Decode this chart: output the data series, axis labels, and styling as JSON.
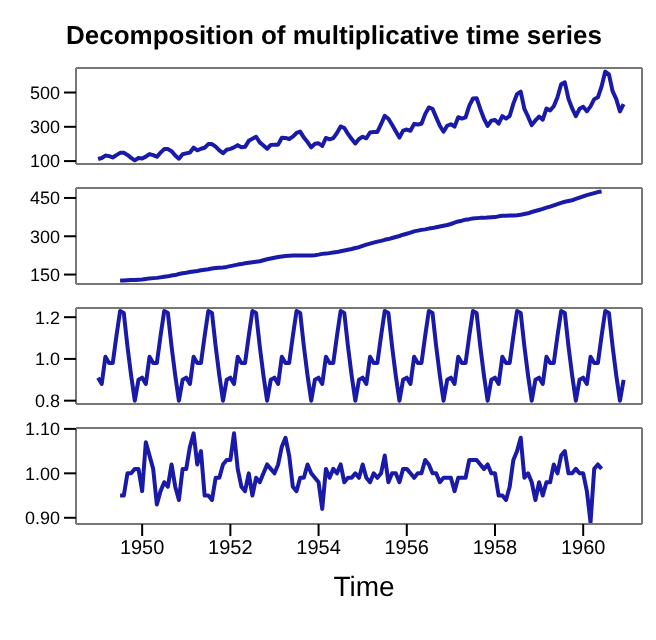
{
  "chart_data": [
    {
      "type": "line",
      "title": "Decomposition of multiplicative time series",
      "tick_labels": "y",
      "x": [
        "1949-01",
        "1949-02",
        "1949-03",
        "1949-04",
        "1949-05",
        "1949-06",
        "1949-07",
        "1949-08",
        "1949-09",
        "1949-10",
        "1949-11",
        "1949-12",
        "1950-01",
        "1950-02",
        "1950-03",
        "1950-04",
        "1950-05",
        "1950-06",
        "1950-07",
        "1950-08",
        "1950-09",
        "1950-10",
        "1950-11",
        "1950-12",
        "1951-01",
        "1951-02",
        "1951-03",
        "1951-04",
        "1951-05",
        "1951-06",
        "1951-07",
        "1951-08",
        "1951-09",
        "1951-10",
        "1951-11",
        "1951-12",
        "1952-01",
        "1952-02",
        "1952-03",
        "1952-04",
        "1952-05",
        "1952-06",
        "1952-07",
        "1952-08",
        "1952-09",
        "1952-10",
        "1952-11",
        "1952-12",
        "1953-01",
        "1953-02",
        "1953-03",
        "1953-04",
        "1953-05",
        "1953-06",
        "1953-07",
        "1953-08",
        "1953-09",
        "1953-10",
        "1953-11",
        "1953-12",
        "1954-01",
        "1954-02",
        "1954-03",
        "1954-04",
        "1954-05",
        "1954-06",
        "1954-07",
        "1954-08",
        "1954-09",
        "1954-10",
        "1954-11",
        "1954-12",
        "1955-01",
        "1955-02",
        "1955-03",
        "1955-04",
        "1955-05",
        "1955-06",
        "1955-07",
        "1955-08",
        "1955-09",
        "1955-10",
        "1955-11",
        "1955-12",
        "1956-01",
        "1956-02",
        "1956-03",
        "1956-04",
        "1956-05",
        "1956-06",
        "1956-07",
        "1956-08",
        "1956-09",
        "1956-10",
        "1956-11",
        "1956-12",
        "1957-01",
        "1957-02",
        "1957-03",
        "1957-04",
        "1957-05",
        "1957-06",
        "1957-07",
        "1957-08",
        "1957-09",
        "1957-10",
        "1957-11",
        "1957-12",
        "1958-01",
        "1958-02",
        "1958-03",
        "1958-04",
        "1958-05",
        "1958-06",
        "1958-07",
        "1958-08",
        "1958-09",
        "1958-10",
        "1958-11",
        "1958-12",
        "1959-01",
        "1959-02",
        "1959-03",
        "1959-04",
        "1959-05",
        "1959-06",
        "1959-07",
        "1959-08",
        "1959-09",
        "1959-10",
        "1959-11",
        "1959-12",
        "1960-01",
        "1960-02",
        "1960-03",
        "1960-04",
        "1960-05",
        "1960-06",
        "1960-07",
        "1960-08",
        "1960-09",
        "1960-10",
        "1960-11",
        "1960-12"
      ],
      "series": [
        {
          "color": "#1a1aa8",
          "values": [
            112,
            118,
            132,
            129,
            121,
            135,
            148,
            148,
            136,
            119,
            104,
            118,
            115,
            126,
            141,
            135,
            125,
            149,
            170,
            170,
            158,
            133,
            114,
            140,
            145,
            150,
            178,
            163,
            172,
            178,
            199,
            199,
            184,
            162,
            146,
            166,
            171,
            180,
            193,
            181,
            183,
            218,
            230,
            242,
            209,
            191,
            172,
            194,
            196,
            196,
            236,
            235,
            229,
            243,
            264,
            272,
            237,
            211,
            180,
            201,
            204,
            188,
            235,
            227,
            234,
            264,
            302,
            293,
            259,
            229,
            203,
            229,
            242,
            233,
            267,
            269,
            270,
            315,
            364,
            347,
            312,
            274,
            237,
            278,
            284,
            277,
            317,
            313,
            318,
            374,
            413,
            405,
            355,
            306,
            271,
            306,
            315,
            301,
            356,
            348,
            355,
            422,
            465,
            467,
            404,
            347,
            305,
            336,
            340,
            318,
            362,
            348,
            363,
            435,
            491,
            505,
            404,
            359,
            310,
            337,
            360,
            342,
            406,
            396,
            420,
            472,
            548,
            559,
            463,
            407,
            362,
            405,
            417,
            391,
            419,
            461,
            472,
            535,
            622,
            606,
            508,
            461,
            390,
            432
          ]
        }
      ],
      "xlim": [
        "1948-07",
        "1961-05"
      ],
      "xticks": [
        "1950",
        "1952",
        "1954",
        "1956",
        "1958",
        "1960"
      ],
      "ylim": [
        83,
        643
      ],
      "yticks": [
        100,
        300,
        500
      ]
    },
    {
      "type": "line",
      "tick_labels": "y",
      "x": [
        "1949-07",
        "1949-08",
        "1949-09",
        "1949-10",
        "1949-11",
        "1949-12",
        "1950-01",
        "1950-02",
        "1950-03",
        "1950-04",
        "1950-05",
        "1950-06",
        "1950-07",
        "1950-08",
        "1950-09",
        "1950-10",
        "1950-11",
        "1950-12",
        "1951-01",
        "1951-02",
        "1951-03",
        "1951-04",
        "1951-05",
        "1951-06",
        "1951-07",
        "1951-08",
        "1951-09",
        "1951-10",
        "1951-11",
        "1951-12",
        "1952-01",
        "1952-02",
        "1952-03",
        "1952-04",
        "1952-05",
        "1952-06",
        "1952-07",
        "1952-08",
        "1952-09",
        "1952-10",
        "1952-11",
        "1952-12",
        "1953-01",
        "1953-02",
        "1953-03",
        "1953-04",
        "1953-05",
        "1953-06",
        "1953-07",
        "1953-08",
        "1953-09",
        "1953-10",
        "1953-11",
        "1953-12",
        "1954-01",
        "1954-02",
        "1954-03",
        "1954-04",
        "1954-05",
        "1954-06",
        "1954-07",
        "1954-08",
        "1954-09",
        "1954-10",
        "1954-11",
        "1954-12",
        "1955-01",
        "1955-02",
        "1955-03",
        "1955-04",
        "1955-05",
        "1955-06",
        "1955-07",
        "1955-08",
        "1955-09",
        "1955-10",
        "1955-11",
        "1955-12",
        "1956-01",
        "1956-02",
        "1956-03",
        "1956-04",
        "1956-05",
        "1956-06",
        "1956-07",
        "1956-08",
        "1956-09",
        "1956-10",
        "1956-11",
        "1956-12",
        "1957-01",
        "1957-02",
        "1957-03",
        "1957-04",
        "1957-05",
        "1957-06",
        "1957-07",
        "1957-08",
        "1957-09",
        "1957-10",
        "1957-11",
        "1957-12",
        "1958-01",
        "1958-02",
        "1958-03",
        "1958-04",
        "1958-05",
        "1958-06",
        "1958-07",
        "1958-08",
        "1958-09",
        "1958-10",
        "1958-11",
        "1958-12",
        "1959-01",
        "1959-02",
        "1959-03",
        "1959-04",
        "1959-05",
        "1959-06",
        "1959-07",
        "1959-08",
        "1959-09",
        "1959-10",
        "1959-11",
        "1959-12",
        "1960-01",
        "1960-02",
        "1960-03",
        "1960-04",
        "1960-05",
        "1960-06"
      ],
      "series": [
        {
          "color": "#1a1aa8",
          "values": [
            127,
            127,
            128,
            129,
            129,
            130,
            131,
            133,
            135,
            136,
            137,
            139,
            141,
            143,
            146,
            148,
            152,
            155,
            157,
            160,
            162,
            164,
            167,
            169,
            171,
            174,
            176,
            177,
            178,
            180,
            183,
            186,
            189,
            191,
            194,
            196,
            198,
            200,
            202,
            206,
            210,
            213,
            216,
            219,
            221,
            223,
            224,
            225,
            225,
            225,
            225,
            225,
            225,
            226,
            228,
            231,
            232,
            234,
            236,
            238,
            241,
            244,
            247,
            250,
            254,
            257,
            262,
            267,
            271,
            275,
            279,
            282,
            286,
            289,
            293,
            297,
            301,
            306,
            310,
            314,
            319,
            322,
            325,
            327,
            330,
            332,
            335,
            338,
            341,
            344,
            348,
            353,
            358,
            361,
            365,
            367,
            370,
            371,
            372,
            372,
            373,
            374,
            375,
            378,
            380,
            380,
            381,
            381,
            382,
            384,
            387,
            390,
            395,
            399,
            403,
            407,
            412,
            416,
            421,
            426,
            431,
            435,
            438,
            441,
            446,
            451,
            456,
            461,
            465,
            469,
            473,
            475
          ]
        }
      ],
      "xlim": [
        "1948-07",
        "1961-05"
      ],
      "xticks": [
        "1950",
        "1952",
        "1954",
        "1956",
        "1958",
        "1960"
      ],
      "ylim": [
        113,
        489
      ],
      "yticks": [
        150,
        300,
        450
      ]
    },
    {
      "type": "line",
      "tick_labels": "y",
      "x": [
        "1949-01",
        "1949-02",
        "1949-03",
        "1949-04",
        "1949-05",
        "1949-06",
        "1949-07",
        "1949-08",
        "1949-09",
        "1949-10",
        "1949-11",
        "1949-12",
        "1950-01",
        "1950-02",
        "1950-03",
        "1950-04",
        "1950-05",
        "1950-06",
        "1950-07",
        "1950-08",
        "1950-09",
        "1950-10",
        "1950-11",
        "1950-12",
        "1951-01",
        "1951-02",
        "1951-03",
        "1951-04",
        "1951-05",
        "1951-06",
        "1951-07",
        "1951-08",
        "1951-09",
        "1951-10",
        "1951-11",
        "1951-12",
        "1952-01",
        "1952-02",
        "1952-03",
        "1952-04",
        "1952-05",
        "1952-06",
        "1952-07",
        "1952-08",
        "1952-09",
        "1952-10",
        "1952-11",
        "1952-12",
        "1953-01",
        "1953-02",
        "1953-03",
        "1953-04",
        "1953-05",
        "1953-06",
        "1953-07",
        "1953-08",
        "1953-09",
        "1953-10",
        "1953-11",
        "1953-12",
        "1954-01",
        "1954-02",
        "1954-03",
        "1954-04",
        "1954-05",
        "1954-06",
        "1954-07",
        "1954-08",
        "1954-09",
        "1954-10",
        "1954-11",
        "1954-12",
        "1955-01",
        "1955-02",
        "1955-03",
        "1955-04",
        "1955-05",
        "1955-06",
        "1955-07",
        "1955-08",
        "1955-09",
        "1955-10",
        "1955-11",
        "1955-12",
        "1956-01",
        "1956-02",
        "1956-03",
        "1956-04",
        "1956-05",
        "1956-06",
        "1956-07",
        "1956-08",
        "1956-09",
        "1956-10",
        "1956-11",
        "1956-12",
        "1957-01",
        "1957-02",
        "1957-03",
        "1957-04",
        "1957-05",
        "1957-06",
        "1957-07",
        "1957-08",
        "1957-09",
        "1957-10",
        "1957-11",
        "1957-12",
        "1958-01",
        "1958-02",
        "1958-03",
        "1958-04",
        "1958-05",
        "1958-06",
        "1958-07",
        "1958-08",
        "1958-09",
        "1958-10",
        "1958-11",
        "1958-12",
        "1959-01",
        "1959-02",
        "1959-03",
        "1959-04",
        "1959-05",
        "1959-06",
        "1959-07",
        "1959-08",
        "1959-09",
        "1959-10",
        "1959-11",
        "1959-12",
        "1960-01",
        "1960-02",
        "1960-03",
        "1960-04",
        "1960-05",
        "1960-06",
        "1960-07",
        "1960-08",
        "1960-09",
        "1960-10",
        "1960-11",
        "1960-12"
      ],
      "series": [
        {
          "color": "#1a1aa8",
          "values": [
            0.91,
            0.88,
            1.01,
            0.98,
            0.98,
            1.11,
            1.23,
            1.22,
            1.06,
            0.92,
            0.8,
            0.9,
            0.91,
            0.88,
            1.01,
            0.98,
            0.98,
            1.11,
            1.23,
            1.22,
            1.06,
            0.92,
            0.8,
            0.9,
            0.91,
            0.88,
            1.01,
            0.98,
            0.98,
            1.11,
            1.23,
            1.22,
            1.06,
            0.92,
            0.8,
            0.9,
            0.91,
            0.88,
            1.01,
            0.98,
            0.98,
            1.11,
            1.23,
            1.22,
            1.06,
            0.92,
            0.8,
            0.9,
            0.91,
            0.88,
            1.01,
            0.98,
            0.98,
            1.11,
            1.23,
            1.22,
            1.06,
            0.92,
            0.8,
            0.9,
            0.91,
            0.88,
            1.01,
            0.98,
            0.98,
            1.11,
            1.23,
            1.22,
            1.06,
            0.92,
            0.8,
            0.9,
            0.91,
            0.88,
            1.01,
            0.98,
            0.98,
            1.11,
            1.23,
            1.22,
            1.06,
            0.92,
            0.8,
            0.9,
            0.91,
            0.88,
            1.01,
            0.98,
            0.98,
            1.11,
            1.23,
            1.22,
            1.06,
            0.92,
            0.8,
            0.9,
            0.91,
            0.88,
            1.01,
            0.98,
            0.98,
            1.11,
            1.23,
            1.22,
            1.06,
            0.92,
            0.8,
            0.9,
            0.91,
            0.88,
            1.01,
            0.98,
            0.98,
            1.11,
            1.23,
            1.22,
            1.06,
            0.92,
            0.8,
            0.9,
            0.91,
            0.88,
            1.01,
            0.98,
            0.98,
            1.11,
            1.23,
            1.22,
            1.06,
            0.92,
            0.8,
            0.9,
            0.91,
            0.88,
            1.01,
            0.98,
            0.98,
            1.11,
            1.23,
            1.22,
            1.06,
            0.92,
            0.8,
            0.9
          ]
        }
      ],
      "xlim": [
        "1948-07",
        "1961-05"
      ],
      "xticks": [
        "1950",
        "1952",
        "1954",
        "1956",
        "1958",
        "1960"
      ],
      "ylim": [
        0.784,
        1.244
      ],
      "yticks": [
        {
          "value": 0.8,
          "label": "0.8"
        },
        {
          "value": 1,
          "label": "1.0"
        },
        {
          "value": 1.2,
          "label": "1.2"
        }
      ]
    },
    {
      "type": "line",
      "xlabel": "Time",
      "x": [
        "1949-07",
        "1949-08",
        "1949-09",
        "1949-10",
        "1949-11",
        "1949-12",
        "1950-01",
        "1950-02",
        "1950-03",
        "1950-04",
        "1950-05",
        "1950-06",
        "1950-07",
        "1950-08",
        "1950-09",
        "1950-10",
        "1950-11",
        "1950-12",
        "1951-01",
        "1951-02",
        "1951-03",
        "1951-04",
        "1951-05",
        "1951-06",
        "1951-07",
        "1951-08",
        "1951-09",
        "1951-10",
        "1951-11",
        "1951-12",
        "1952-01",
        "1952-02",
        "1952-03",
        "1952-04",
        "1952-05",
        "1952-06",
        "1952-07",
        "1952-08",
        "1952-09",
        "1952-10",
        "1952-11",
        "1952-12",
        "1953-01",
        "1953-02",
        "1953-03",
        "1953-04",
        "1953-05",
        "1953-06",
        "1953-07",
        "1953-08",
        "1953-09",
        "1953-10",
        "1953-11",
        "1953-12",
        "1954-01",
        "1954-02",
        "1954-03",
        "1954-04",
        "1954-05",
        "1954-06",
        "1954-07",
        "1954-08",
        "1954-09",
        "1954-10",
        "1954-11",
        "1954-12",
        "1955-01",
        "1955-02",
        "1955-03",
        "1955-04",
        "1955-05",
        "1955-06",
        "1955-07",
        "1955-08",
        "1955-09",
        "1955-10",
        "1955-11",
        "1955-12",
        "1956-01",
        "1956-02",
        "1956-03",
        "1956-04",
        "1956-05",
        "1956-06",
        "1956-07",
        "1956-08",
        "1956-09",
        "1956-10",
        "1956-11",
        "1956-12",
        "1957-01",
        "1957-02",
        "1957-03",
        "1957-04",
        "1957-05",
        "1957-06",
        "1957-07",
        "1957-08",
        "1957-09",
        "1957-10",
        "1957-11",
        "1957-12",
        "1958-01",
        "1958-02",
        "1958-03",
        "1958-04",
        "1958-05",
        "1958-06",
        "1958-07",
        "1958-08",
        "1958-09",
        "1958-10",
        "1958-11",
        "1958-12",
        "1959-01",
        "1959-02",
        "1959-03",
        "1959-04",
        "1959-05",
        "1959-06",
        "1959-07",
        "1959-08",
        "1959-09",
        "1959-10",
        "1959-11",
        "1959-12",
        "1960-01",
        "1960-02",
        "1960-03",
        "1960-04",
        "1960-05",
        "1960-06"
      ],
      "series": [
        {
          "color": "#1a1aa8",
          "values": [
            0.95,
            0.95,
            1.0,
            1.0,
            1.01,
            1.01,
            0.96,
            1.07,
            1.04,
            1.01,
            0.93,
            0.96,
            0.98,
            0.97,
            1.02,
            0.97,
            0.94,
            1.01,
            1.01,
            1.06,
            1.09,
            1.02,
            1.05,
            0.95,
            0.95,
            0.94,
            0.99,
            0.99,
            1.02,
            1.03,
            1.03,
            1.09,
            1.01,
            0.97,
            0.96,
            1.0,
            0.95,
            0.99,
            0.98,
            1.0,
            1.02,
            1.01,
            1.0,
            1.02,
            1.06,
            1.08,
            1.04,
            0.97,
            0.96,
            0.99,
            0.99,
            1.02,
            1.0,
            0.99,
            0.98,
            0.92,
            1.01,
            0.99,
            1.01,
            1.0,
            1.02,
            0.98,
            0.99,
            0.99,
            1.0,
            0.99,
            1.02,
            0.99,
            0.98,
            1.0,
            0.99,
            1.0,
            1.04,
            0.98,
            1.0,
            1.0,
            0.98,
            1.01,
            1.01,
            1.0,
            0.99,
            1.0,
            1.0,
            1.03,
            1.02,
            1.0,
            1.0,
            0.98,
            0.99,
            0.99,
            0.99,
            0.96,
            0.99,
            0.99,
            0.99,
            1.03,
            1.03,
            1.03,
            1.02,
            1.01,
            1.02,
            1.0,
            1.0,
            0.95,
            0.95,
            0.94,
            0.97,
            1.03,
            1.05,
            1.08,
            0.99,
            1.0,
            0.98,
            0.94,
            0.98,
            0.95,
            0.98,
            0.98,
            1.02,
            1.0,
            1.04,
            1.05,
            1.0,
            1.0,
            1.01,
            1.0,
            1.0,
            0.96,
            0.89,
            1.01,
            1.02,
            1.01
          ]
        }
      ],
      "xlim": [
        "1948-07",
        "1961-05"
      ],
      "xticks": [
        "1950",
        "1952",
        "1954",
        "1956",
        "1958",
        "1960"
      ],
      "ylim": [
        0.886,
        1.102
      ],
      "yticks": [
        {
          "value": 0.9,
          "label": "0.90"
        },
        {
          "value": 1,
          "label": "1.00"
        },
        {
          "value": 1.1,
          "label": "1.10"
        }
      ]
    }
  ]
}
